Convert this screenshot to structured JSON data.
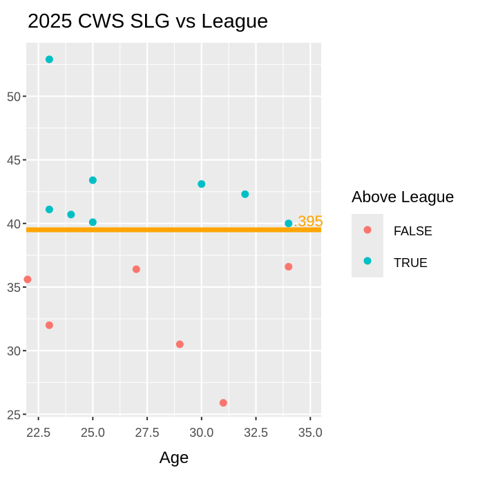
{
  "chart_data": {
    "type": "scatter",
    "title": "2025 CWS SLG vs League",
    "xlabel": "Age",
    "ylabel": "",
    "xlim": [
      21.94,
      35.5
    ],
    "ylim": [
      24.8,
      54.2
    ],
    "x_ticks": [
      22.5,
      25.0,
      27.5,
      30.0,
      32.5,
      35.0
    ],
    "x_tick_labels": [
      "22.5",
      "25.0",
      "27.5",
      "30.0",
      "32.5",
      "35.0"
    ],
    "y_ticks": [
      25,
      30,
      35,
      40,
      45,
      50
    ],
    "y_tick_labels": [
      "25",
      "30",
      "35",
      "40",
      "45",
      "50"
    ],
    "grid": true,
    "legend": {
      "title": "Above League",
      "placement": "right",
      "entries": [
        {
          "label": "FALSE",
          "color": "#F8766D"
        },
        {
          "label": "TRUE",
          "color": "#00BFC4"
        }
      ]
    },
    "series": [
      {
        "name": "FALSE",
        "color": "#F8766D",
        "points": [
          [
            22,
            35.6
          ],
          [
            23,
            32.0
          ],
          [
            27,
            36.4
          ],
          [
            29,
            30.5
          ],
          [
            31,
            25.9
          ],
          [
            34,
            36.6
          ]
        ]
      },
      {
        "name": "TRUE",
        "color": "#00BFC4",
        "points": [
          [
            23,
            52.9
          ],
          [
            23,
            41.1
          ],
          [
            24,
            40.7
          ],
          [
            25,
            43.4
          ],
          [
            25,
            40.1
          ],
          [
            30,
            43.1
          ],
          [
            32,
            42.3
          ],
          [
            34,
            40.0
          ]
        ]
      }
    ],
    "reference_line": {
      "y": 39.5,
      "color": "#FFA500",
      "label": ".395"
    }
  }
}
